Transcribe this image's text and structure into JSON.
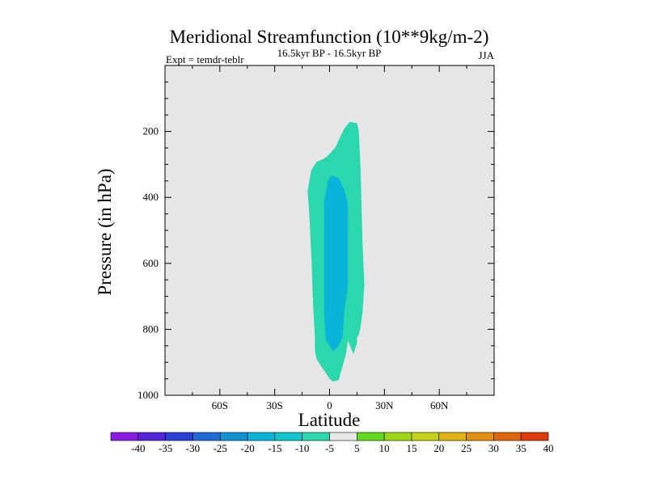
{
  "chart_data": {
    "type": "contour",
    "title": "Meridional Streamfunction (10**9kg/m-2)",
    "left_string": "Expt = temdr-teblr",
    "center_string": "16.5kyr BP - 16.5kyr BP",
    "right_string": "JJA",
    "xlabel": "Latitude",
    "ylabel": "Pressure (in hPa)",
    "xlim": [
      -90,
      90
    ],
    "ylim": [
      1000,
      0
    ],
    "x_ticks": [
      {
        "value": -60,
        "label": "60S"
      },
      {
        "value": -30,
        "label": "30S"
      },
      {
        "value": 0,
        "label": "0"
      },
      {
        "value": 30,
        "label": "30N"
      },
      {
        "value": 60,
        "label": "60N"
      }
    ],
    "y_ticks": [
      {
        "value": 200,
        "label": "200"
      },
      {
        "value": 400,
        "label": "400"
      },
      {
        "value": 600,
        "label": "600"
      },
      {
        "value": 800,
        "label": "800"
      },
      {
        "value": 1000,
        "label": "1000"
      }
    ],
    "levels": [
      "-40",
      "-35",
      "-30",
      "-25",
      "-20",
      "-15",
      "-10",
      "-5",
      "5",
      "10",
      "15",
      "20",
      "25",
      "30",
      "35",
      "40"
    ],
    "colorbar_colors": [
      "#8b1be0",
      "#5524d8",
      "#2a3fd6",
      "#1f6cd8",
      "#1492d6",
      "#0ab4d8",
      "#10c8cc",
      "#2bd8ad",
      "#e8e8e8",
      "#60da1e",
      "#9dd614",
      "#c7d11a",
      "#e0b412",
      "#e0900e",
      "#e0660d",
      "#e03a0a"
    ],
    "background_color": "#e6e6e6",
    "contour_regions": [
      {
        "name": "upper-positive-cell",
        "color": "#60da1e",
        "points": [
          [
            3,
            860
          ],
          [
            5,
            880
          ],
          [
            7,
            900
          ],
          [
            8,
            930
          ],
          [
            5,
            945
          ],
          [
            3,
            930
          ],
          [
            2,
            900
          ]
        ]
      },
      {
        "name": "outer-negative-cell",
        "color": "#2bd8ad",
        "points": [
          [
            -12,
            455
          ],
          [
            -10,
            380
          ],
          [
            -7,
            350
          ],
          [
            -5,
            345
          ],
          [
            -2,
            335
          ],
          [
            3,
            300
          ],
          [
            8,
            230
          ],
          [
            11,
            205
          ],
          [
            15,
            210
          ],
          [
            16,
            240
          ],
          [
            17,
            380
          ],
          [
            18,
            640
          ],
          [
            19,
            800
          ],
          [
            18,
            900
          ],
          [
            17,
            950
          ],
          [
            16,
            980
          ],
          [
            15,
            990
          ],
          [
            15,
            1010
          ],
          [
            13,
            1050
          ],
          [
            10,
            1000
          ],
          [
            9,
            1050
          ],
          [
            6,
            1120
          ],
          [
            5,
            1145
          ],
          [
            2,
            1150
          ],
          [
            0,
            1140
          ],
          [
            -3,
            1110
          ],
          [
            -7,
            1070
          ],
          [
            -8,
            1040
          ],
          [
            -8,
            990
          ],
          [
            -9,
            870
          ],
          [
            -10,
            690
          ],
          [
            -11,
            550
          ]
        ]
      },
      {
        "name": "inner-negative-cell",
        "color": "#0ab4d8",
        "points": [
          [
            -3,
            500
          ],
          [
            -1,
            420
          ],
          [
            1,
            400
          ],
          [
            5,
            410
          ],
          [
            8,
            450
          ],
          [
            10,
            500
          ],
          [
            10,
            700
          ],
          [
            10,
            800
          ],
          [
            8,
            900
          ],
          [
            7,
            990
          ],
          [
            5,
            1020
          ],
          [
            2,
            1040
          ],
          [
            0,
            1020
          ],
          [
            -2,
            1000
          ],
          [
            -3,
            900
          ],
          [
            -3,
            700
          ]
        ]
      }
    ]
  }
}
